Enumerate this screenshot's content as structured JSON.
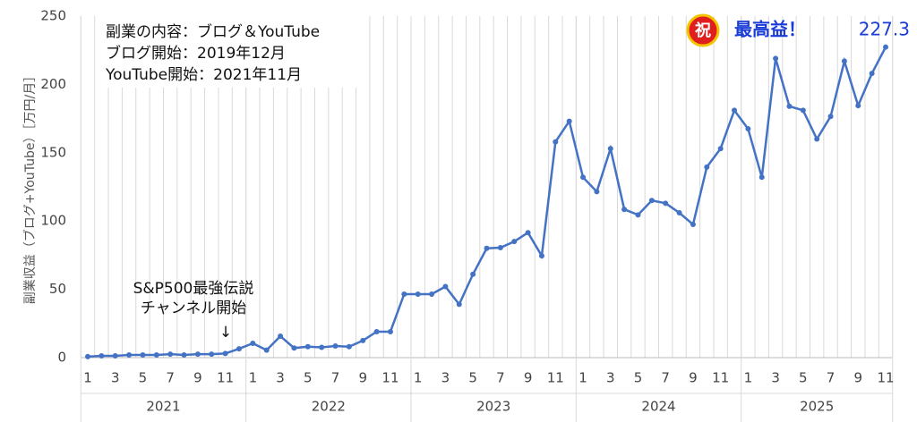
{
  "chart_data": {
    "type": "line",
    "y_label": "副業収益（ブログ+YouTube）［万円/月］",
    "info_lines": [
      "副業の内容：ブログ＆YouTube",
      "ブログ開始：2019年12月",
      "YouTube開始：2021年11月"
    ],
    "annotation": [
      "S&P500最強伝説",
      "チャンネル開始"
    ],
    "arrow": "↓",
    "badge": "祝",
    "peak_label": "最高益！",
    "years": [
      "2021",
      "2022",
      "2023",
      "2024",
      "2025"
    ],
    "categories": [
      "1",
      null,
      "3",
      null,
      "5",
      null,
      "7",
      null,
      "9",
      null,
      "11",
      null,
      "1",
      null,
      "3",
      null,
      "5",
      null,
      "7",
      null,
      "9",
      null,
      "11",
      null,
      "1",
      null,
      "3",
      null,
      "5",
      null,
      "7",
      null,
      "9",
      null,
      "11",
      null,
      "1",
      null,
      "3",
      null,
      "5",
      null,
      "7",
      null,
      "9",
      null,
      "11",
      null,
      "1",
      null,
      "3",
      null,
      "5",
      null,
      "7",
      null,
      "9",
      null,
      "11"
    ],
    "series": [
      {
        "color": "#4472c4",
        "values": [
          0.7,
          1.3,
          1.3,
          2,
          2,
          2,
          2.5,
          2,
          2.5,
          2.5,
          3,
          6.5,
          10.5,
          5.5,
          15.7,
          7,
          8,
          7.5,
          8.5,
          8,
          12.5,
          19,
          19,
          46.5,
          46.5,
          46.5,
          52,
          39,
          61,
          80,
          80.5,
          85,
          91.5,
          74.5,
          158,
          173,
          132,
          121.5,
          153,
          108.5,
          104.5,
          115,
          113,
          106,
          97.5,
          139.5,
          153,
          181,
          167.5,
          132,
          219,
          184,
          181,
          160,
          176.5,
          217,
          184.5,
          208,
          227.3
        ]
      }
    ],
    "ylim": [
      0,
      250
    ],
    "yticks": [
      0,
      50,
      100,
      150,
      200,
      250
    ],
    "grid": true
  }
}
